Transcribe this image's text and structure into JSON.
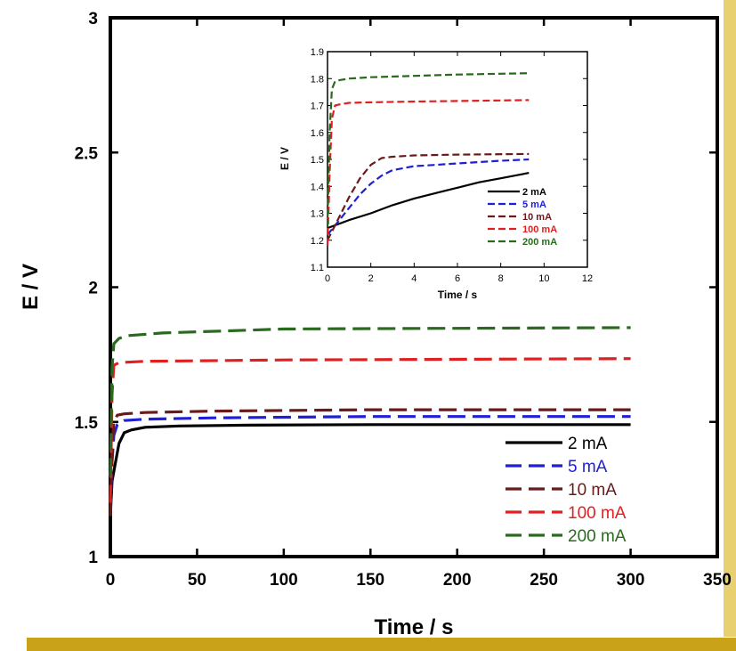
{
  "colors": {
    "background": "#ffffff",
    "frame": "#000000",
    "bottom_band": "#c9a21a",
    "right_edge": "#e8d070"
  },
  "chart_data": [
    {
      "id": "main",
      "type": "line",
      "title": "",
      "xlabel": "Time / s",
      "ylabel": "E / V",
      "xlim": [
        0,
        350
      ],
      "ylim": [
        1,
        3
      ],
      "xticks": [
        0,
        50,
        100,
        150,
        200,
        250,
        300,
        350
      ],
      "yticks": [
        1,
        1.5,
        2,
        2.5,
        3
      ],
      "xtick_labels": [
        "0",
        "50",
        "100",
        "150",
        "200",
        "250",
        "300",
        "350"
      ],
      "ytick_labels": [
        "1",
        "1.5",
        "2",
        "2.5",
        "3"
      ],
      "grid": false,
      "legend_position": "bottom-right",
      "series": [
        {
          "name": "2 mA",
          "color": "#000000",
          "dash": "solid",
          "x": [
            0,
            1,
            3,
            5,
            8,
            12,
            20,
            40,
            80,
            150,
            300
          ],
          "y": [
            1.15,
            1.28,
            1.35,
            1.42,
            1.46,
            1.47,
            1.48,
            1.485,
            1.488,
            1.49,
            1.49
          ]
        },
        {
          "name": "5 mA",
          "color": "#1f1fd6",
          "dash": "dashed",
          "x": [
            0,
            1,
            2,
            4,
            8,
            20,
            60,
            150,
            300
          ],
          "y": [
            1.15,
            1.35,
            1.45,
            1.49,
            1.505,
            1.51,
            1.515,
            1.52,
            1.52
          ]
        },
        {
          "name": "10 mA",
          "color": "#6b1a1a",
          "dash": "dashed",
          "x": [
            0,
            1,
            2,
            4,
            8,
            20,
            60,
            150,
            300
          ],
          "y": [
            1.15,
            1.4,
            1.5,
            1.525,
            1.53,
            1.535,
            1.54,
            1.545,
            1.545
          ]
        },
        {
          "name": "100 mA",
          "color": "#e02020",
          "dash": "dashed",
          "x": [
            0,
            1,
            2,
            5,
            20,
            100,
            300
          ],
          "y": [
            1.2,
            1.6,
            1.71,
            1.72,
            1.725,
            1.73,
            1.735
          ]
        },
        {
          "name": "200 mA",
          "color": "#2a6a1e",
          "dash": "dashed",
          "x": [
            0,
            1,
            2,
            5,
            10,
            30,
            100,
            300
          ],
          "y": [
            1.3,
            1.7,
            1.79,
            1.81,
            1.82,
            1.83,
            1.845,
            1.85
          ]
        }
      ]
    },
    {
      "id": "inset",
      "type": "line",
      "title": "",
      "xlabel": "Time / s",
      "ylabel": "E / V",
      "xlim": [
        0,
        12
      ],
      "ylim": [
        1.1,
        1.9
      ],
      "xticks": [
        0,
        2,
        4,
        6,
        8,
        10,
        12
      ],
      "yticks": [
        1.1,
        1.2,
        1.3,
        1.4,
        1.5,
        1.6,
        1.7,
        1.8,
        1.9
      ],
      "xtick_labels": [
        "0",
        "2",
        "4",
        "6",
        "8",
        "10",
        "12"
      ],
      "ytick_labels": [
        "1.1",
        "1.2",
        "1.3",
        "1.4",
        "1.5",
        "1.6",
        "1.7",
        "1.8",
        "1.9"
      ],
      "grid": false,
      "legend_position": "bottom-right",
      "series": [
        {
          "name": "2 mA",
          "color": "#000000",
          "dash": "solid",
          "x": [
            0,
            0.5,
            1,
            2,
            3,
            4,
            5,
            6,
            7,
            8,
            9,
            9.3
          ],
          "y": [
            1.245,
            1.26,
            1.275,
            1.3,
            1.33,
            1.355,
            1.375,
            1.395,
            1.415,
            1.43,
            1.445,
            1.45
          ]
        },
        {
          "name": "5 mA",
          "color": "#1f1fd6",
          "dash": "dashed",
          "x": [
            0,
            0.5,
            1,
            1.5,
            2,
            2.5,
            3,
            4,
            5,
            6,
            7,
            8,
            9.3
          ],
          "y": [
            1.22,
            1.27,
            1.32,
            1.37,
            1.41,
            1.44,
            1.46,
            1.475,
            1.48,
            1.485,
            1.49,
            1.495,
            1.5
          ]
        },
        {
          "name": "10 mA",
          "color": "#6b1a1a",
          "dash": "dashed",
          "x": [
            0,
            0.5,
            1,
            1.5,
            2,
            2.5,
            3,
            4,
            6,
            9.3
          ],
          "y": [
            1.2,
            1.28,
            1.36,
            1.43,
            1.48,
            1.505,
            1.51,
            1.515,
            1.518,
            1.52
          ]
        },
        {
          "name": "100 mA",
          "color": "#e02020",
          "dash": "dashed",
          "x": [
            0,
            0.1,
            0.2,
            0.35,
            0.6,
            1,
            2,
            4,
            6,
            9.3
          ],
          "y": [
            1.18,
            1.45,
            1.65,
            1.7,
            1.705,
            1.71,
            1.712,
            1.715,
            1.717,
            1.72
          ]
        },
        {
          "name": "200 mA",
          "color": "#2a6a1e",
          "dash": "dashed",
          "x": [
            0,
            0.1,
            0.2,
            0.35,
            0.6,
            1,
            2,
            4,
            6,
            9.3
          ],
          "y": [
            1.25,
            1.6,
            1.76,
            1.79,
            1.795,
            1.8,
            1.805,
            1.81,
            1.815,
            1.82
          ]
        }
      ]
    }
  ]
}
